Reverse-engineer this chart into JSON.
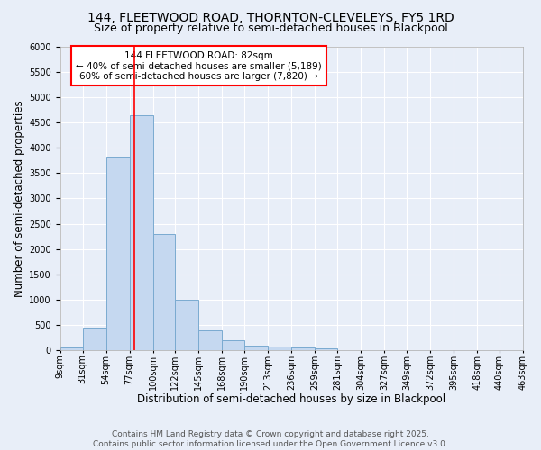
{
  "title": "144, FLEETWOOD ROAD, THORNTON-CLEVELEYS, FY5 1RD",
  "subtitle": "Size of property relative to semi-detached houses in Blackpool",
  "xlabel": "Distribution of semi-detached houses by size in Blackpool",
  "ylabel": "Number of semi-detached properties",
  "footer_line1": "Contains HM Land Registry data © Crown copyright and database right 2025.",
  "footer_line2": "Contains public sector information licensed under the Open Government Licence v3.0.",
  "annotation_title": "144 FLEETWOOD ROAD: 82sqm",
  "annotation_line1": "← 40% of semi-detached houses are smaller (5,189)",
  "annotation_line2": "60% of semi-detached houses are larger (7,820) →",
  "bin_edges": [
    9,
    31,
    54,
    77,
    100,
    122,
    145,
    168,
    190,
    213,
    236,
    259,
    281,
    304,
    327,
    349,
    372,
    395,
    418,
    440,
    463
  ],
  "bin_counts": [
    50,
    450,
    3800,
    4650,
    2300,
    1000,
    400,
    200,
    100,
    80,
    60,
    40,
    0,
    0,
    0,
    0,
    0,
    0,
    0,
    0
  ],
  "bar_color": "#c5d8f0",
  "bar_edge_color": "#7aaad0",
  "vline_color": "red",
  "vline_x": 82,
  "ylim": [
    0,
    6000
  ],
  "yticks": [
    0,
    500,
    1000,
    1500,
    2000,
    2500,
    3000,
    3500,
    4000,
    4500,
    5000,
    5500,
    6000
  ],
  "background_color": "#e8eef8",
  "plot_bg_color": "#e8eef8",
  "grid_color": "white",
  "annotation_box_color": "white",
  "annotation_box_edge": "red",
  "title_fontsize": 10,
  "subtitle_fontsize": 9,
  "axis_label_fontsize": 8.5,
  "tick_fontsize": 7,
  "footer_fontsize": 6.5,
  "annotation_fontsize": 7.5
}
